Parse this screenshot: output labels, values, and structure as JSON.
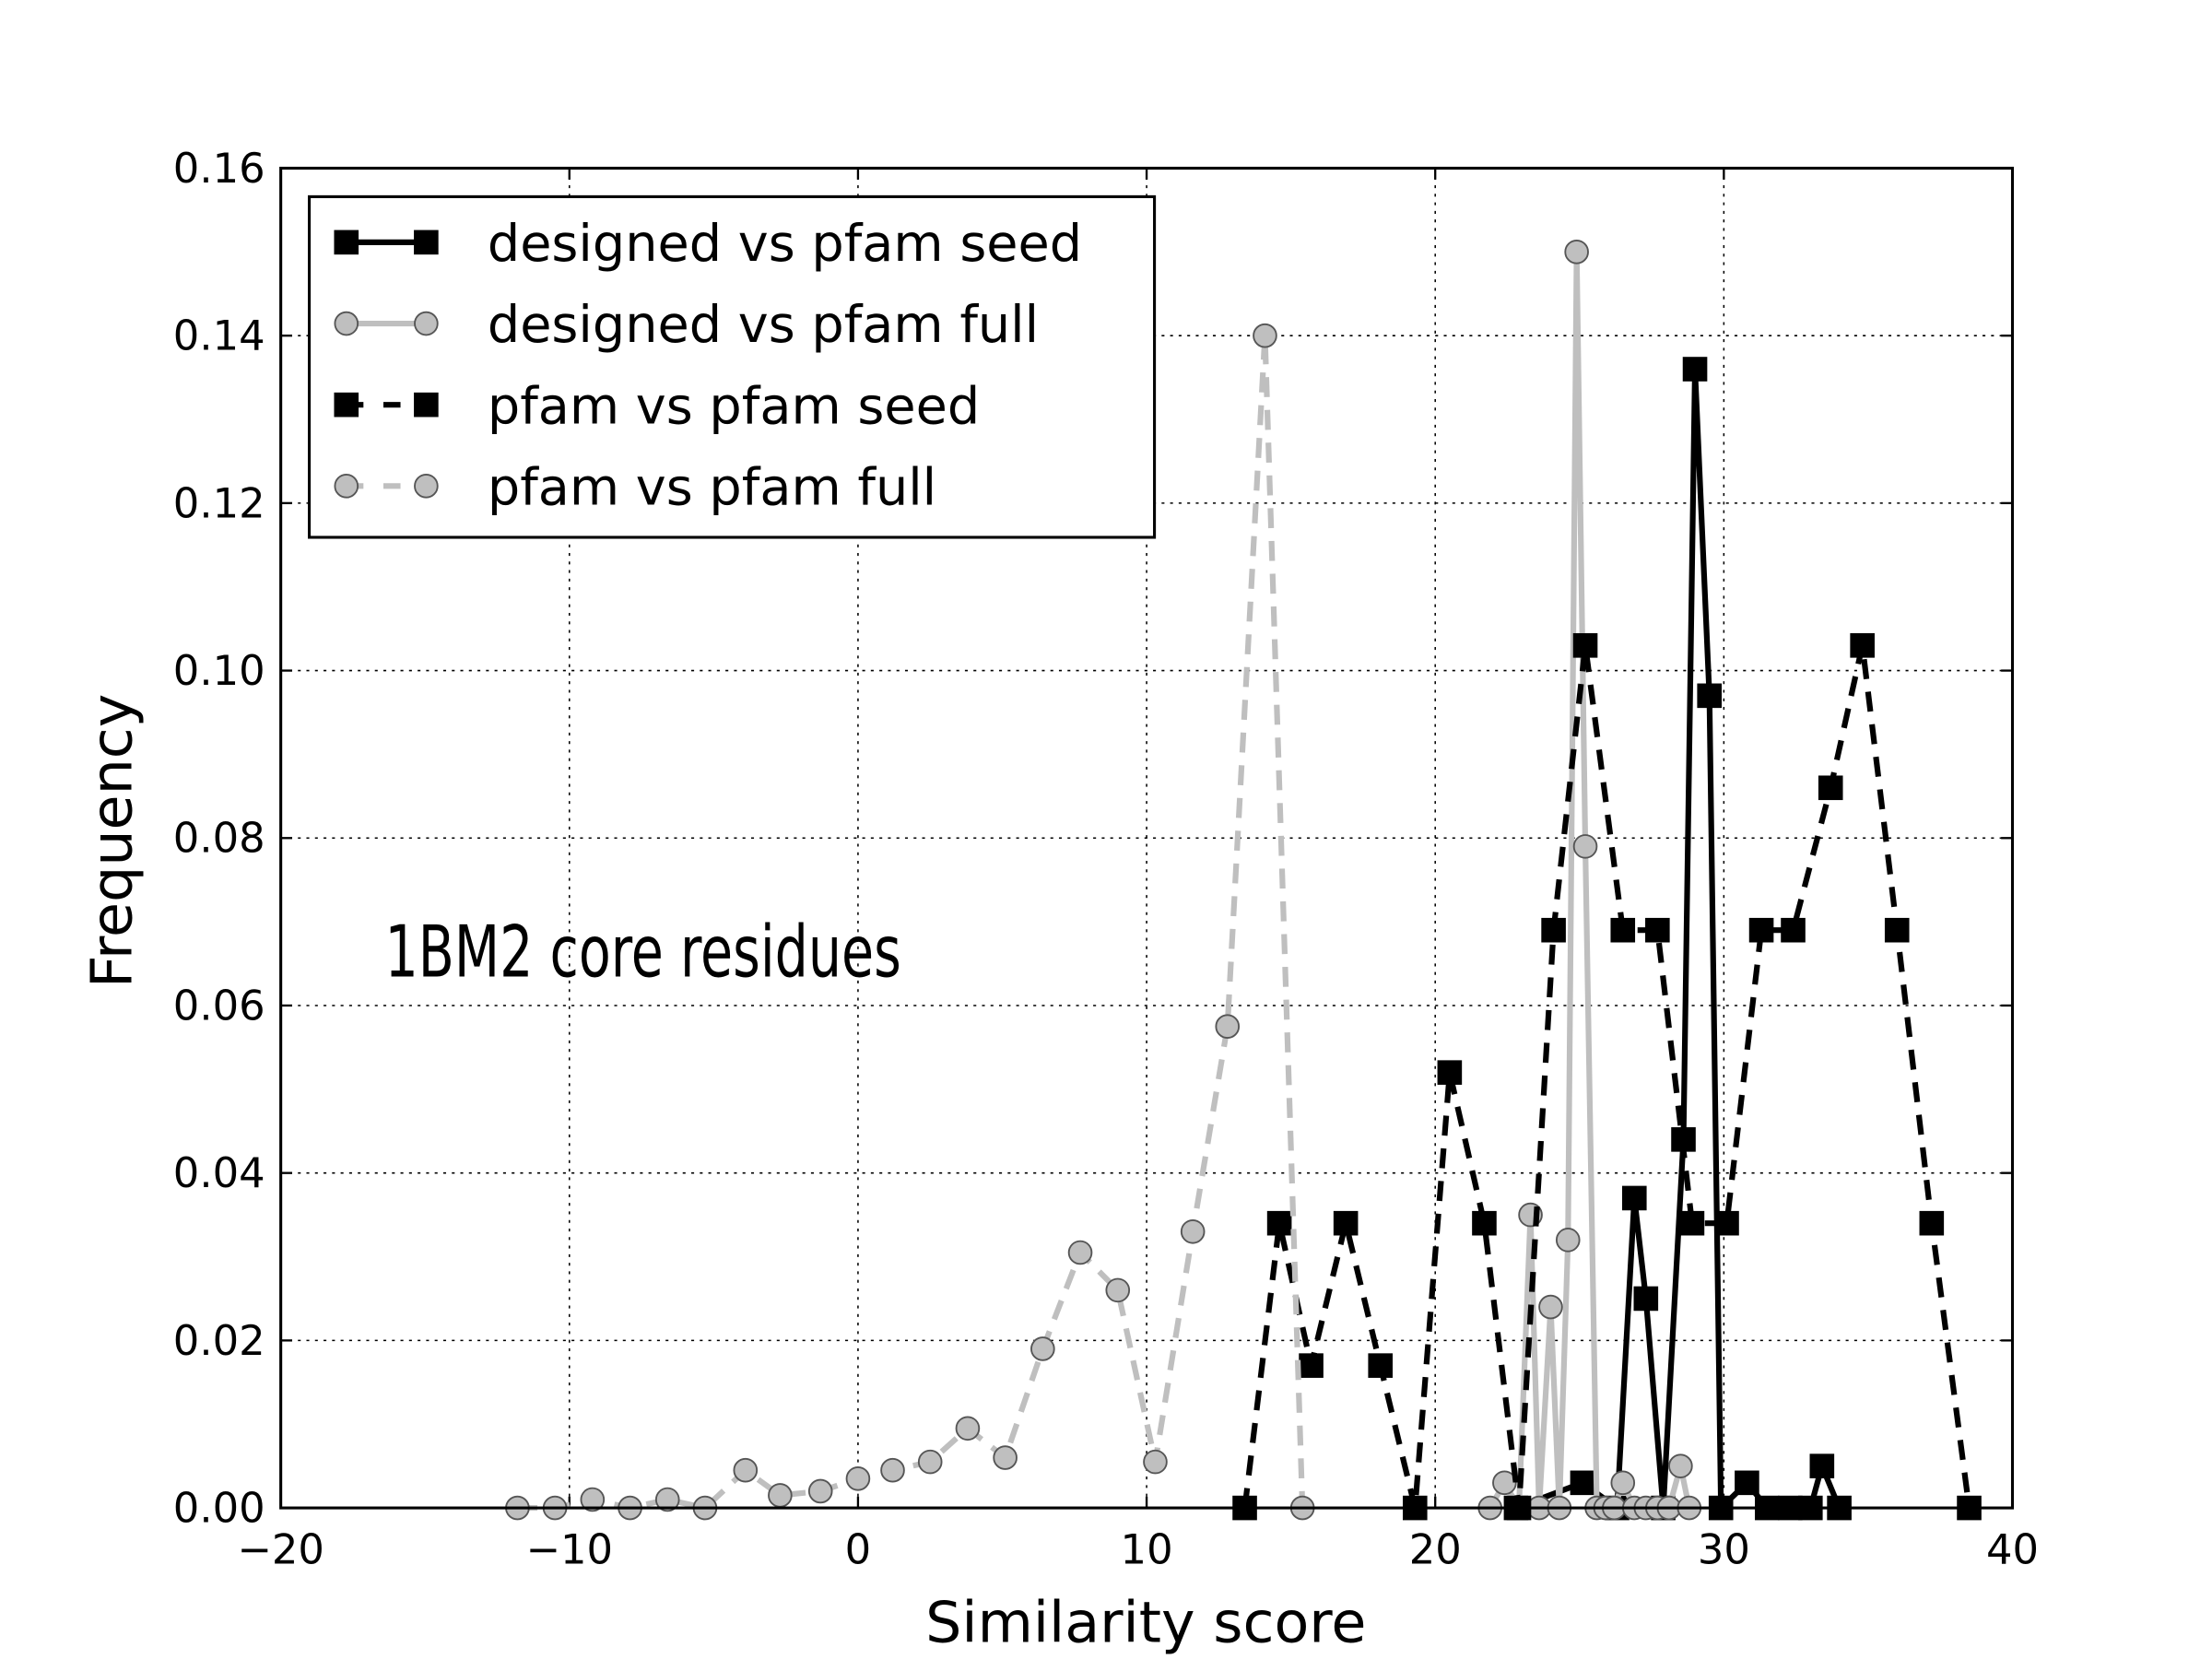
{
  "chart_data": {
    "type": "line",
    "xlabel": "Similarity score",
    "ylabel": "Frequency",
    "annotation": "1BM2 core residues",
    "xlim": [
      -20,
      40
    ],
    "ylim": [
      0,
      0.16
    ],
    "xticks": [
      {
        "value": -20,
        "label": "−20"
      },
      {
        "value": -10,
        "label": "−10"
      },
      0,
      10,
      20,
      30,
      40
    ],
    "yticks": [
      {
        "value": 0,
        "label": "0.00"
      },
      {
        "value": 0.02,
        "label": "0.02"
      },
      {
        "value": 0.04,
        "label": "0.04"
      },
      {
        "value": 0.06,
        "label": "0.06"
      },
      {
        "value": 0.08,
        "label": "0.08"
      },
      {
        "value": 0.1,
        "label": "0.10"
      },
      {
        "value": 0.12,
        "label": "0.12"
      },
      {
        "value": 0.14,
        "label": "0.14"
      },
      {
        "value": 0.16,
        "label": "0.16"
      }
    ],
    "grid": true,
    "legend": "upper left",
    "series": [
      {
        "name": "designed vs pfam seed",
        "color": "#000000",
        "linestyle": "solid",
        "marker": "square",
        "x": [
          22.8,
          25.1,
          26.3,
          26.9,
          27.3,
          27.9,
          28.6,
          29.0,
          29.5,
          29.9,
          30.8,
          31.5,
          32.3,
          33.0,
          33.4,
          34.0
        ],
        "values": [
          0,
          0.003,
          0,
          0.037,
          0.025,
          0,
          0.044,
          0.136,
          0.097,
          0,
          0.003,
          0,
          0,
          0,
          0.005,
          0
        ]
      },
      {
        "name": "designed vs pfam full",
        "color": "#bfbfbf",
        "linestyle": "solid",
        "marker": "circle",
        "x": [
          21.9,
          22.4,
          22.9,
          23.3,
          23.6,
          24.0,
          24.3,
          24.6,
          24.9,
          25.2,
          25.6,
          25.9,
          26.2,
          26.5,
          26.9,
          27.3,
          27.7,
          28.1,
          28.5,
          28.8
        ],
        "values": [
          0,
          0.003,
          0,
          0.035,
          0,
          0.024,
          0,
          0.032,
          0.15,
          0.079,
          0,
          0,
          0,
          0.003,
          0,
          0,
          0,
          0,
          0.005,
          0
        ]
      },
      {
        "name": "pfam vs pfam seed",
        "color": "#000000",
        "linestyle": "dashed",
        "marker": "square",
        "x": [
          13.4,
          14.6,
          15.7,
          16.9,
          18.1,
          19.3,
          20.5,
          21.7,
          22.9,
          24.1,
          25.2,
          26.5,
          27.7,
          28.9,
          30.1,
          31.3,
          32.4,
          33.7,
          34.8,
          36.0,
          37.2,
          38.5
        ],
        "values": [
          0,
          0.034,
          0.017,
          0.034,
          0.017,
          0,
          0.052,
          0.034,
          0,
          0.069,
          0.103,
          0.069,
          0.069,
          0.034,
          0.034,
          0.069,
          0.069,
          0.086,
          0.103,
          0.069,
          0.034,
          0
        ]
      },
      {
        "name": "pfam vs pfam full",
        "color": "#bfbfbf",
        "linestyle": "dashed",
        "marker": "circle",
        "x": [
          -11.8,
          -10.5,
          -9.2,
          -7.9,
          -6.6,
          -5.3,
          -3.9,
          -2.7,
          -1.3,
          0,
          1.2,
          2.5,
          3.8,
          5.1,
          6.4,
          7.7,
          9.0,
          10.3,
          11.6,
          12.8,
          14.1,
          15.4
        ],
        "values": [
          0,
          0,
          0.001,
          0,
          0.001,
          0,
          0.0045,
          0.0015,
          0.002,
          0.0035,
          0.0045,
          0.0055,
          0.0095,
          0.006,
          0.019,
          0.0305,
          0.026,
          0.0055,
          0.033,
          0.0575,
          0.14,
          0
        ]
      }
    ]
  }
}
